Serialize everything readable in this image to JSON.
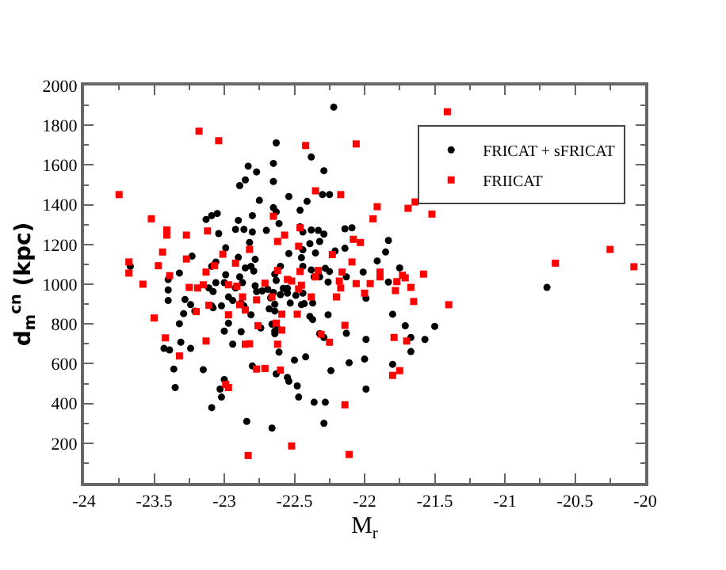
{
  "chart_data": {
    "type": "scatter",
    "xlabel": "M$_{r}$",
    "ylabel": "d$_{m}$$^{cn}$ (kpc)",
    "xlim": [
      -24,
      -20
    ],
    "xticks": [
      -24,
      -23.5,
      -23,
      -22.5,
      -22,
      -21.5,
      -21,
      -20.5,
      -20
    ],
    "ylim": [
      0,
      2000
    ],
    "yticks": [
      200,
      400,
      600,
      800,
      1000,
      1200,
      1400,
      1600,
      1800,
      2000
    ],
    "legend": "top right",
    "series": [
      {
        "name": "FRICAT + sFRICAT",
        "color": "#000000",
        "marker": "circle",
        "x": [
          -22.22,
          -22.63,
          -22.38,
          -22.65,
          -22.83,
          -22.77,
          -22.29,
          -22.65,
          -22.85,
          -22.89,
          -22.3,
          -22.25,
          -22.54,
          -22.75,
          -22.41,
          -22.46,
          -22.65,
          -22.63,
          -23.13,
          -23.09,
          -23.05,
          -22.9,
          -22.8,
          -22.61,
          -23.04,
          -22.92,
          -22.86,
          -22.8,
          -22.7,
          -22.46,
          -22.44,
          -22.38,
          -22.33,
          -22.29,
          -22.14,
          -22.09,
          -22.82,
          -22.39,
          -22.32,
          -22.21,
          -22.14,
          -21.83,
          -23.23,
          -22.99,
          -22.9,
          -22.78,
          -22.44,
          -22.54,
          -22.45,
          -22.35,
          -21.85,
          -21.91,
          -21.75,
          -23.67,
          -23.09,
          -23.06,
          -22.85,
          -22.81,
          -22.6,
          -22.44,
          -22.38,
          -22.28,
          -22.25,
          -22.13,
          -22.01,
          -23.32,
          -22.99,
          -22.89,
          -22.79,
          -23.4,
          -22.36,
          -22.32,
          -22.64,
          -22.63,
          -23.06,
          -23.0,
          -23.11,
          -22.92,
          -22.87,
          -22.78,
          -22.73,
          -22.69,
          -22.58,
          -22.55,
          -22.26,
          -21.83,
          -23.4,
          -23.08,
          -22.77,
          -22.65,
          -22.6,
          -22.55,
          -22.49,
          -22.44,
          -23.4,
          -23.28,
          -22.97,
          -22.94,
          -22.88,
          -22.86,
          -22.67,
          -22.64,
          -22.53,
          -22.45,
          -22.43,
          -21.99,
          -22.37,
          -23.24,
          -23.09,
          -23.08,
          -23.02,
          -22.68,
          -22.64,
          -23.29,
          -23.21,
          -22.81,
          -22.39,
          -22.37,
          -22.26,
          -21.8,
          -23.32,
          -22.97,
          -22.66,
          -22.64,
          -22.74,
          -22.64,
          -22.62,
          -21.71,
          -21.5,
          -23.0,
          -22.88,
          -22.32,
          -22.13,
          -22.29,
          -21.99,
          -21.67,
          -21.57,
          -23.43,
          -23.39,
          -23.31,
          -23.24,
          -22.94,
          -22.61,
          -22.5,
          -22.42,
          -21.67,
          -22.11,
          -22.0,
          -21.8,
          -23.36,
          -23.15,
          -22.8,
          -22.24,
          -22.63,
          -22.55,
          -22.54,
          -23.0,
          -22.48,
          -23.35,
          -23.03,
          -23.02,
          -21.99,
          -22.47,
          -22.36,
          -22.28,
          -23.09,
          -22.84,
          -22.66,
          -22.29,
          -20.7
        ],
        "values": [
          1891,
          1711,
          1640,
          1608,
          1594,
          1565,
          1571,
          1517,
          1525,
          1496,
          1451,
          1451,
          1441,
          1422,
          1417,
          1372,
          1385,
          1364,
          1326,
          1345,
          1356,
          1321,
          1345,
          1305,
          1255,
          1276,
          1276,
          1263,
          1271,
          1289,
          1263,
          1273,
          1271,
          1252,
          1279,
          1284,
          1210,
          1204,
          1215,
          1167,
          1181,
          1220,
          1141,
          1183,
          1135,
          1125,
          1173,
          1154,
          1133,
          1157,
          1162,
          1117,
          1082,
          1090,
          1090,
          1112,
          1082,
          1090,
          1090,
          1090,
          1072,
          1080,
          1064,
          1037,
          1061,
          1056,
          1048,
          1037,
          1066,
          1024,
          1037,
          1037,
          1051,
          1019,
          1008,
          1008,
          981,
          981,
          1008,
          992,
          966,
          974,
          979,
          979,
          1011,
          1011,
          971,
          963,
          963,
          958,
          947,
          955,
          944,
          955,
          918,
          923,
          936,
          918,
          905,
          891,
          931,
          899,
          905,
          897,
          902,
          929,
          905,
          897,
          891,
          881,
          891,
          876,
          865,
          852,
          865,
          846,
          838,
          822,
          846,
          849,
          801,
          804,
          799,
          764,
          780,
          751,
          777,
          791,
          788,
          764,
          761,
          751,
          753,
          732,
          722,
          732,
          722,
          677,
          669,
          708,
          677,
          698,
          658,
          618,
          634,
          661,
          605,
          623,
          597,
          573,
          570,
          589,
          565,
          549,
          531,
          512,
          520,
          488,
          480,
          472,
          432,
          472,
          432,
          406,
          406,
          379,
          310,
          276,
          300,
          984
        ]
      },
      {
        "name": "FRIICAT",
        "color": "#ff0000",
        "marker": "square",
        "x": [
          -21.41,
          -23.18,
          -23.04,
          -22.42,
          -22.06,
          -23.75,
          -22.35,
          -22.17,
          -21.64,
          -21.69,
          -21.91,
          -21.52,
          -23.52,
          -21.94,
          -22.65,
          -23.41,
          -23.41,
          -23.27,
          -23.12,
          -22.46,
          -22.57,
          -22.62,
          -22.03,
          -22.08,
          -20.25,
          -23.44,
          -22.82,
          -22.47,
          -22.23,
          -23.27,
          -23.01,
          -23.68,
          -22.09,
          -20.64,
          -20.08,
          -23.47,
          -23.07,
          -22.92,
          -22.33,
          -23.13,
          -23.68,
          -23.39,
          -22.62,
          -22.46,
          -22.16,
          -21.89,
          -21.89,
          -21.73,
          -21.71,
          -21.58,
          -22.35,
          -22.55,
          -22.52,
          -22.71,
          -22.18,
          -22.06,
          -21.96,
          -21.77,
          -23.58,
          -23.15,
          -23.25,
          -23.19,
          -22.97,
          -22.91,
          -22.45,
          -22.17,
          -21.67,
          -22.47,
          -22.0,
          -21.78,
          -22.87,
          -22.66,
          -22.38,
          -22.2,
          -21.65,
          -21.4,
          -23.11,
          -22.89,
          -22.77,
          -22.85,
          -23.2,
          -22.59,
          -22.48,
          -23.5,
          -22.97,
          -22.63,
          -22.76,
          -22.14,
          -22.59,
          -22.31,
          -23.42,
          -21.79,
          -23.13,
          -22.25,
          -21.7,
          -22.85,
          -22.82,
          -22.62,
          -23.32,
          -22.77,
          -22.71,
          -22.6,
          -21.75,
          -21.8,
          -22.99,
          -22.97,
          -22.14,
          -22.52,
          -22.83,
          -22.11
        ],
        "values": [
          1868,
          1770,
          1722,
          1698,
          1706,
          1451,
          1470,
          1451,
          1414,
          1382,
          1390,
          1353,
          1329,
          1329,
          1342,
          1273,
          1247,
          1247,
          1268,
          1284,
          1247,
          1215,
          1210,
          1226,
          1175,
          1162,
          1175,
          1191,
          1149,
          1127,
          1151,
          1112,
          1112,
          1106,
          1088,
          1093,
          1093,
          1106,
          1069,
          1061,
          1056,
          1043,
          1069,
          1064,
          1061,
          1061,
          1037,
          1045,
          1032,
          1051,
          1037,
          1024,
          1016,
          1005,
          1016,
          1003,
          1003,
          1013,
          1000,
          997,
          984,
          981,
          997,
          990,
          995,
          981,
          984,
          976,
          955,
          968,
          936,
          936,
          936,
          936,
          913,
          897,
          894,
          897,
          921,
          870,
          862,
          849,
          849,
          830,
          846,
          804,
          791,
          793,
          769,
          748,
          730,
          732,
          714,
          708,
          714,
          698,
          700,
          698,
          639,
          573,
          576,
          568,
          565,
          541,
          496,
          480,
          393,
          186,
          138,
          143
        ]
      }
    ]
  }
}
